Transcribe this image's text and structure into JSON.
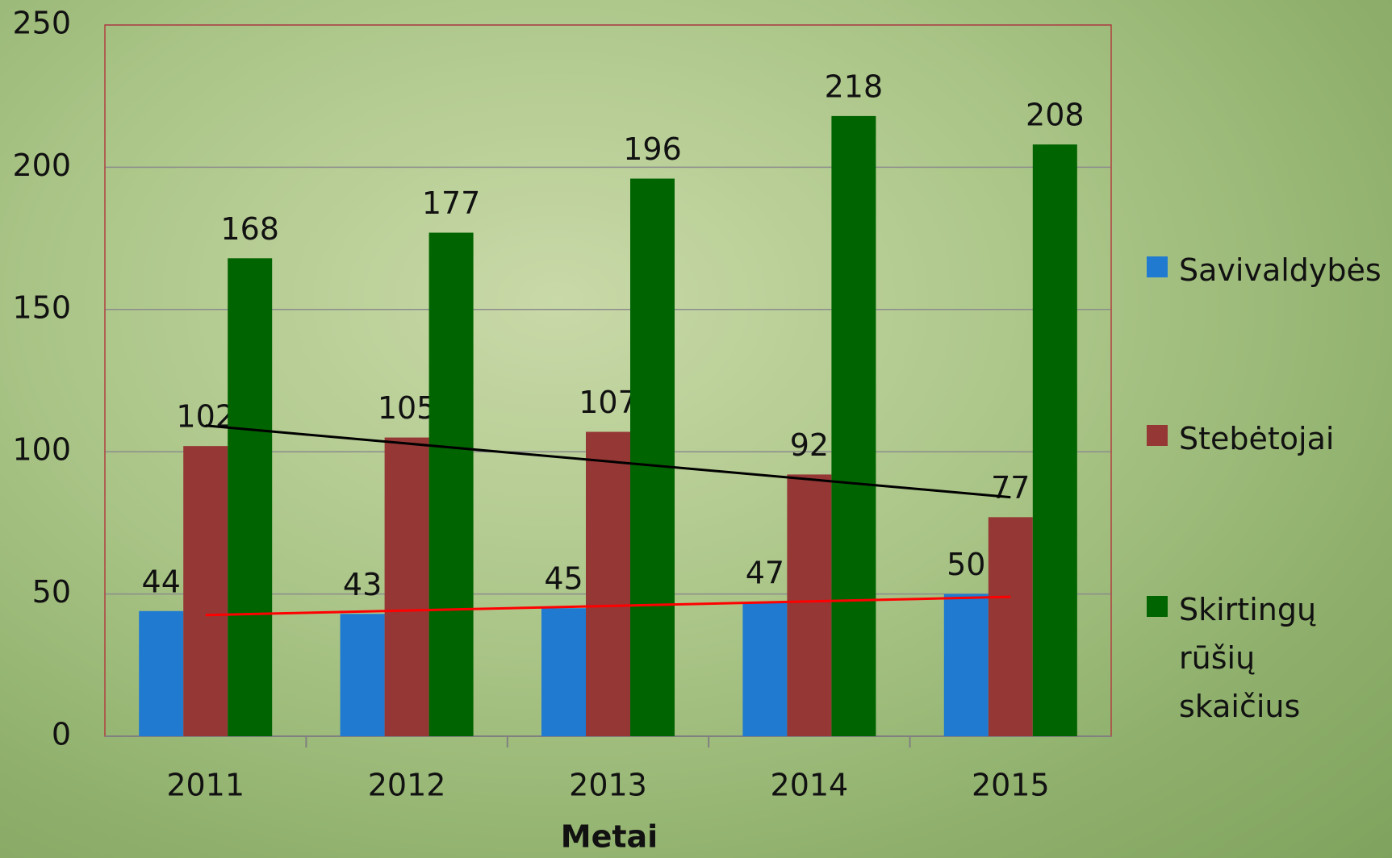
{
  "chart_data": {
    "type": "bar",
    "x_label": "Metai",
    "categories": [
      "2011",
      "2012",
      "2013",
      "2014",
      "2015"
    ],
    "series": [
      {
        "name": "Savivaldybės",
        "color": "#1f7ad0",
        "values": [
          44,
          43,
          45,
          47,
          50
        ],
        "trendline_color": "#ff0000"
      },
      {
        "name": "Stebėtojai",
        "color": "#953735",
        "values": [
          102,
          105,
          107,
          92,
          77
        ],
        "trendline_color": "#000000"
      },
      {
        "name": "Skirtingų rūšių skaičius",
        "color": "#006400",
        "values": [
          168,
          177,
          196,
          218,
          208
        ]
      }
    ],
    "ylim": [
      0,
      250
    ],
    "yticks": [
      0,
      50,
      100,
      150,
      200,
      250
    ],
    "grid": true,
    "legend": "right"
  }
}
